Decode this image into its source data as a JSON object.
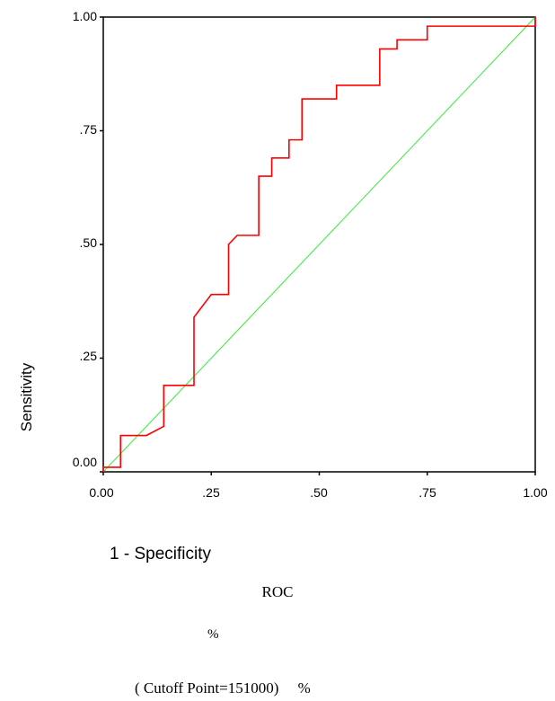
{
  "chart_data": {
    "type": "line",
    "title": "",
    "xlabel": "1 - Specificity",
    "ylabel": "Sensitivity",
    "xlim": [
      0,
      1
    ],
    "ylim": [
      0,
      1
    ],
    "x_ticks": [
      "0.00",
      ".25",
      ".50",
      ".75",
      "1.00"
    ],
    "y_ticks": [
      "0.00",
      ".25",
      ".50",
      ".75",
      "1.00"
    ],
    "grid": false,
    "legend": "none",
    "series": [
      {
        "color": "#ff0000",
        "points": [
          [
            0,
            0
          ],
          [
            0,
            0.01
          ],
          [
            0.04,
            0.01
          ],
          [
            0.04,
            0.08
          ],
          [
            0.1,
            0.08
          ],
          [
            0.14,
            0.1
          ],
          [
            0.14,
            0.19
          ],
          [
            0.21,
            0.19
          ],
          [
            0.21,
            0.34
          ],
          [
            0.25,
            0.39
          ],
          [
            0.29,
            0.39
          ],
          [
            0.29,
            0.5
          ],
          [
            0.31,
            0.52
          ],
          [
            0.36,
            0.52
          ],
          [
            0.36,
            0.65
          ],
          [
            0.39,
            0.65
          ],
          [
            0.39,
            0.69
          ],
          [
            0.43,
            0.69
          ],
          [
            0.43,
            0.73
          ],
          [
            0.46,
            0.73
          ],
          [
            0.46,
            0.82
          ],
          [
            0.54,
            0.82
          ],
          [
            0.54,
            0.85
          ],
          [
            0.64,
            0.85
          ],
          [
            0.64,
            0.93
          ],
          [
            0.68,
            0.93
          ],
          [
            0.68,
            0.95
          ],
          [
            0.75,
            0.95
          ],
          [
            0.75,
            0.98
          ],
          [
            1,
            0.98
          ],
          [
            1,
            1
          ]
        ]
      },
      {
        "color": "#33ee33",
        "points": [
          [
            0,
            0
          ],
          [
            1,
            1
          ]
        ]
      }
    ]
  },
  "captions": {
    "line1": "ROC",
    "line2": "%",
    "line3": "( Cutoff Point=151000)　 %"
  }
}
